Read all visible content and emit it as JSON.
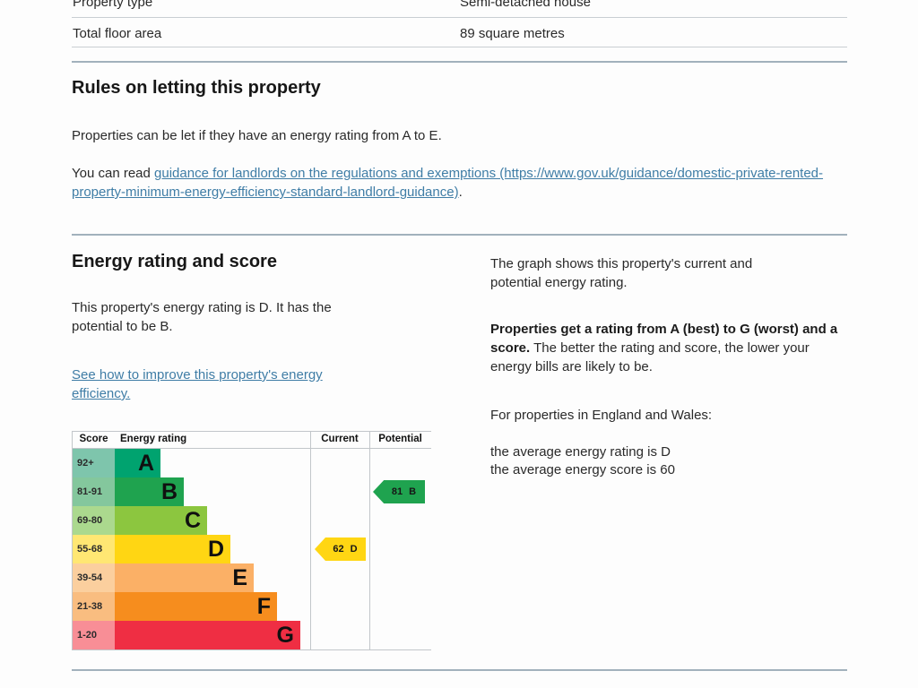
{
  "theme": {
    "link_color": "#3f7da6",
    "section_divider_color": "#a2b1bc",
    "row_divider_color": "#c9ced3",
    "text_color": "#2a2a2a"
  },
  "property_table": {
    "rows": [
      {
        "label": "Property type",
        "value": "Semi-detached house"
      },
      {
        "label": "Total floor area",
        "value": "89 square metres"
      }
    ]
  },
  "rules_section": {
    "heading": "Rules on letting this property",
    "para1": "Properties can be let if they have an energy rating from A to E.",
    "para2_prefix": "You can read ",
    "link_text": "guidance for landlords on the regulations and exemptions (https://www.gov.uk/guidance/domestic-private-rented-property-minimum-energy-efficiency-standard-landlord-guidance)",
    "para2_suffix": "."
  },
  "rating_section": {
    "heading": "Energy rating and score",
    "para1": "This property's energy rating is D. It has the potential to be B.",
    "link_text": "See how to improve this property's energy efficiency."
  },
  "right_column": {
    "para1": "The graph shows this property's current and potential energy rating.",
    "para2_bold": "Properties get a rating from A (best) to G (worst) and a score.",
    "para2_rest": " The better the rating and score, the lower your energy bills are likely to be.",
    "para3": "For properties in England and Wales:",
    "para4_line1": "the average energy rating is D",
    "para4_line2": "the average energy score is 60"
  },
  "chart_data": {
    "type": "epc_rating_graph",
    "title": "Energy rating and score graph",
    "headers": {
      "score": "Score",
      "rating": "Energy rating",
      "current": "Current",
      "potential": "Potential"
    },
    "bands": [
      {
        "score": "92+",
        "letter": "A",
        "color": "#00a36f",
        "tint": "#7ec5ac"
      },
      {
        "score": "81-91",
        "letter": "B",
        "color": "#1fa34f",
        "tint": "#84c79d"
      },
      {
        "score": "69-80",
        "letter": "C",
        "color": "#8cc63f",
        "tint": "#abd98e"
      },
      {
        "score": "55-68",
        "letter": "D",
        "color": "#ffd613",
        "tint": "#ffe773"
      },
      {
        "score": "39-54",
        "letter": "E",
        "color": "#fbb066",
        "tint": "#fbcf9e"
      },
      {
        "score": "21-38",
        "letter": "F",
        "color": "#f68d1e",
        "tint": "#f9bd80"
      },
      {
        "score": "1-20",
        "letter": "G",
        "color": "#ef2e43",
        "tint": "#f88e96"
      }
    ],
    "current": {
      "value": "62",
      "letter": "D",
      "band_index": 3,
      "color": "#ffd613"
    },
    "potential": {
      "value": "81",
      "letter": "B",
      "band_index": 1,
      "color": "#1fa34f"
    }
  }
}
